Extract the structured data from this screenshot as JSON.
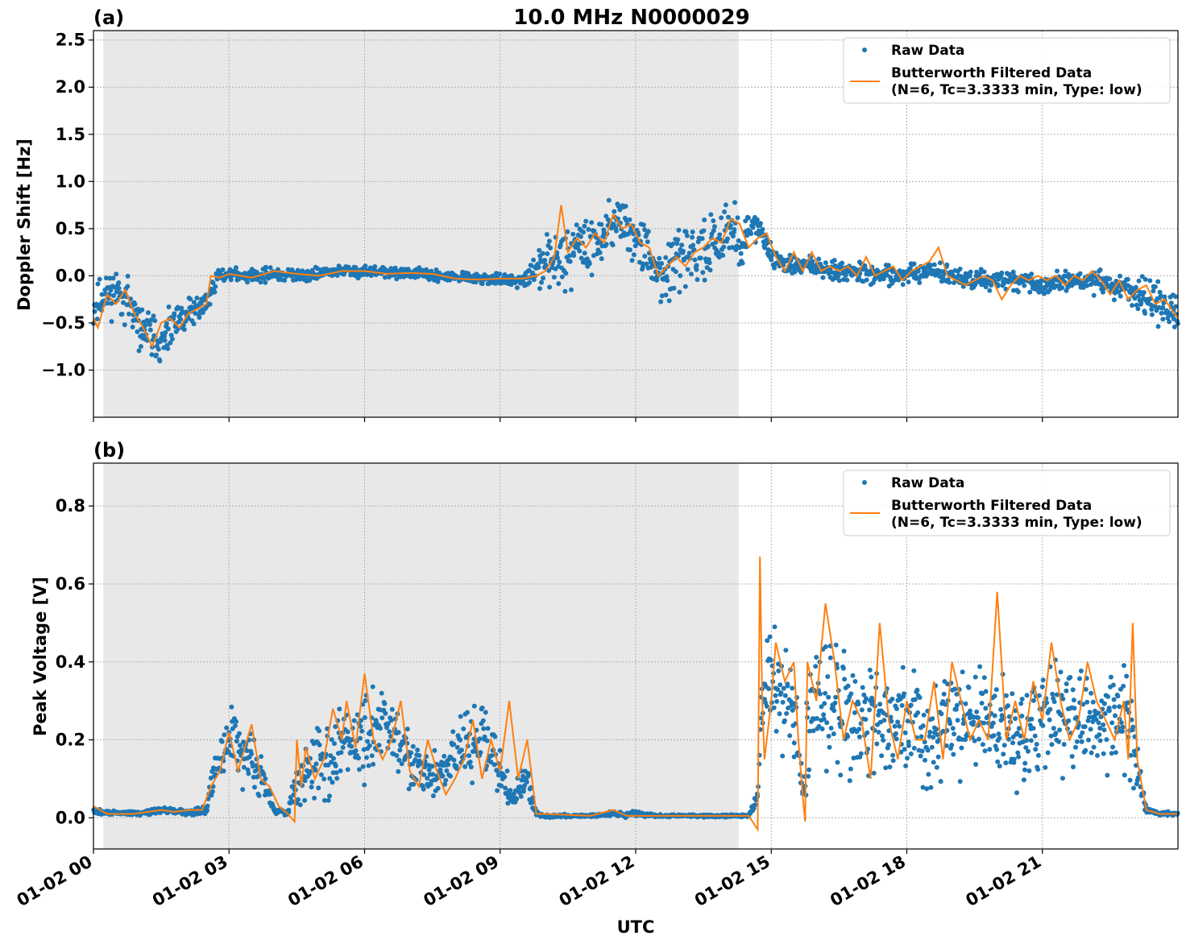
{
  "figure": {
    "title": "10.0 MHz N0000029",
    "xlabel": "UTC",
    "x_tick_labels": [
      "01-02 00",
      "01-02 03",
      "01-02 06",
      "01-02 09",
      "01-02 12",
      "01-02 15",
      "01-02 18",
      "01-02 21"
    ]
  },
  "colors": {
    "raw": "#1f77b4",
    "filtered": "#ff7f0e",
    "night_shade": "#e8e8e8"
  },
  "chart_data": [
    {
      "type": "scatter",
      "panel_label": "(a)",
      "ylabel": "Doppler Shift [Hz]",
      "xlim": [
        0,
        24
      ],
      "ylim": [
        -1.5,
        2.6
      ],
      "y_ticks": [
        -1.0,
        -0.5,
        0.0,
        0.5,
        1.0,
        1.5,
        2.0,
        2.5
      ],
      "y_tick_labels": [
        "−1.0",
        "−0.5",
        "0.0",
        "0.5",
        "1.0",
        "1.5",
        "2.0",
        "2.5"
      ],
      "x_ticks": [
        0,
        3,
        6,
        9,
        12,
        15,
        18,
        21
      ],
      "grid": true,
      "legend_position": "upper right",
      "legend": [
        "Raw Data",
        "Butterworth Filtered Data",
        "(N=6, Tc=3.3333 min, Type: low)"
      ],
      "shaded_interval_hours": [
        0.22,
        14.28
      ],
      "series": [
        {
          "name": "Raw Data",
          "style": "points",
          "x": [
            0,
            0.25,
            0.5,
            0.75,
            1.0,
            1.25,
            1.5,
            1.75,
            2.0,
            2.25,
            2.5,
            2.75,
            3.0,
            3.5,
            4.0,
            4.5,
            5.0,
            5.5,
            6.0,
            6.5,
            7.0,
            7.5,
            8.0,
            8.5,
            9.0,
            9.5,
            9.75,
            10.0,
            10.25,
            10.5,
            10.75,
            11.0,
            11.25,
            11.5,
            11.75,
            12.0,
            12.25,
            12.5,
            12.75,
            13.0,
            13.25,
            13.5,
            13.75,
            14.0,
            14.25,
            14.5,
            14.75,
            15.0,
            15.5,
            16.0,
            16.5,
            17.0,
            17.5,
            18.0,
            18.5,
            19.0,
            19.5,
            20.0,
            20.5,
            21.0,
            21.5,
            22.0,
            22.5,
            23.0,
            23.5,
            24.0
          ],
          "center": [
            -0.35,
            -0.2,
            -0.15,
            -0.25,
            -0.55,
            -0.6,
            -0.75,
            -0.55,
            -0.45,
            -0.35,
            -0.3,
            0.0,
            0.02,
            0.0,
            0.02,
            0.0,
            0.02,
            0.05,
            0.05,
            0.03,
            0.03,
            0.0,
            -0.02,
            -0.03,
            -0.04,
            -0.05,
            0.05,
            0.1,
            0.25,
            0.2,
            0.35,
            0.35,
            0.4,
            0.6,
            0.55,
            0.4,
            0.25,
            0.05,
            0.05,
            0.15,
            0.2,
            0.3,
            0.35,
            0.55,
            0.4,
            0.45,
            0.5,
            0.2,
            0.1,
            0.1,
            0.05,
            0.05,
            0.0,
            0.0,
            0.05,
            0.0,
            -0.05,
            -0.05,
            -0.05,
            -0.1,
            -0.05,
            -0.05,
            -0.1,
            -0.15,
            -0.25,
            -0.45
          ],
          "spread": [
            0.3,
            0.35,
            0.35,
            0.35,
            0.3,
            0.35,
            0.3,
            0.3,
            0.3,
            0.25,
            0.2,
            0.1,
            0.08,
            0.1,
            0.12,
            0.1,
            0.1,
            0.1,
            0.1,
            0.08,
            0.08,
            0.08,
            0.08,
            0.08,
            0.08,
            0.1,
            0.2,
            0.35,
            0.5,
            0.5,
            0.5,
            0.4,
            0.4,
            0.4,
            0.4,
            0.4,
            0.4,
            0.35,
            0.4,
            0.45,
            0.45,
            0.45,
            0.45,
            0.45,
            0.45,
            0.3,
            0.2,
            0.2,
            0.15,
            0.15,
            0.15,
            0.15,
            0.15,
            0.15,
            0.15,
            0.15,
            0.15,
            0.15,
            0.15,
            0.15,
            0.15,
            0.15,
            0.2,
            0.25,
            0.3,
            0.35
          ]
        },
        {
          "name": "Butterworth Filtered Data",
          "style": "line",
          "x": [
            0,
            0.1,
            0.3,
            0.5,
            0.7,
            0.9,
            1.1,
            1.3,
            1.5,
            1.7,
            1.9,
            2.1,
            2.3,
            2.5,
            2.6,
            2.8,
            3.0,
            3.5,
            4.0,
            4.5,
            5.0,
            5.5,
            6.0,
            6.5,
            7.0,
            7.5,
            8.0,
            8.5,
            9.0,
            9.5,
            9.8,
            10.0,
            10.2,
            10.35,
            10.5,
            10.7,
            10.9,
            11.1,
            11.3,
            11.5,
            11.7,
            11.9,
            12.1,
            12.3,
            12.5,
            12.7,
            12.9,
            13.1,
            13.3,
            13.5,
            13.7,
            13.9,
            14.1,
            14.3,
            14.5,
            14.7,
            14.9,
            15.1,
            15.3,
            15.5,
            15.7,
            15.9,
            16.1,
            16.3,
            16.5,
            16.7,
            16.9,
            17.1,
            17.3,
            17.5,
            17.7,
            17.9,
            18.1,
            18.3,
            18.5,
            18.7,
            18.9,
            19.1,
            19.3,
            19.5,
            19.7,
            19.9,
            20.1,
            20.3,
            20.5,
            20.7,
            20.9,
            21.1,
            21.3,
            21.5,
            21.7,
            21.9,
            22.1,
            22.3,
            22.5,
            22.7,
            22.9,
            23.1,
            23.3,
            23.5,
            23.7,
            24.0
          ],
          "y": [
            -0.45,
            -0.55,
            -0.2,
            -0.3,
            -0.15,
            -0.4,
            -0.55,
            -0.75,
            -0.5,
            -0.45,
            -0.55,
            -0.4,
            -0.35,
            -0.3,
            0.0,
            -0.02,
            0.02,
            -0.02,
            0.05,
            0.02,
            0.0,
            0.05,
            0.05,
            0.02,
            0.03,
            0.02,
            -0.03,
            -0.04,
            -0.03,
            -0.03,
            0.0,
            0.05,
            0.2,
            0.75,
            0.25,
            0.4,
            0.3,
            0.45,
            0.35,
            0.65,
            0.5,
            0.55,
            0.35,
            0.3,
            0.0,
            0.1,
            0.2,
            0.1,
            0.25,
            0.3,
            0.4,
            0.35,
            0.6,
            0.55,
            0.3,
            0.4,
            0.45,
            0.2,
            0.05,
            0.25,
            0.05,
            0.25,
            0.05,
            0.1,
            0.05,
            0.1,
            0.0,
            0.2,
            0.0,
            0.05,
            0.1,
            -0.05,
            0.05,
            0.1,
            0.15,
            0.3,
            0.0,
            -0.05,
            -0.1,
            -0.05,
            0.0,
            -0.05,
            -0.25,
            -0.1,
            0.0,
            -0.05,
            0.0,
            -0.05,
            0.0,
            -0.1,
            0.0,
            -0.05,
            0.05,
            -0.05,
            -0.2,
            -0.05,
            -0.25,
            -0.15,
            -0.1,
            -0.3,
            -0.25,
            -0.45
          ]
        }
      ]
    },
    {
      "type": "scatter",
      "panel_label": "(b)",
      "ylabel": "Peak Voltage [V]",
      "xlim": [
        0,
        24
      ],
      "ylim": [
        -0.08,
        0.91
      ],
      "y_ticks": [
        0.0,
        0.2,
        0.4,
        0.6,
        0.8
      ],
      "y_tick_labels": [
        "0.0",
        "0.2",
        "0.4",
        "0.6",
        "0.8"
      ],
      "x_ticks": [
        0,
        3,
        6,
        9,
        12,
        15,
        18,
        21
      ],
      "grid": true,
      "legend_position": "upper right",
      "legend": [
        "Raw Data",
        "Butterworth Filtered Data",
        "(N=6, Tc=3.3333 min, Type: low)"
      ],
      "shaded_interval_hours": [
        0.22,
        14.28
      ],
      "series": [
        {
          "name": "Raw Data",
          "style": "points",
          "x": [
            0,
            0.5,
            1.0,
            1.5,
            2.0,
            2.5,
            2.6,
            2.8,
            3.0,
            3.2,
            3.5,
            3.8,
            4.0,
            4.3,
            4.5,
            4.7,
            5.0,
            5.3,
            5.6,
            6.0,
            6.3,
            6.6,
            7.0,
            7.3,
            7.6,
            8.0,
            8.3,
            8.6,
            9.0,
            9.3,
            9.6,
            9.8,
            10.0,
            11.0,
            11.5,
            12.0,
            12.5,
            13.0,
            14.0,
            14.5,
            14.7,
            14.8,
            15.0,
            15.3,
            15.5,
            15.7,
            15.8,
            16.0,
            16.5,
            17.0,
            17.5,
            18.0,
            18.5,
            19.0,
            19.5,
            20.0,
            20.5,
            21.0,
            21.5,
            22.0,
            22.5,
            22.8,
            23.0,
            23.3,
            23.6,
            24.0
          ],
          "center": [
            0.015,
            0.012,
            0.012,
            0.02,
            0.015,
            0.02,
            0.08,
            0.15,
            0.2,
            0.2,
            0.15,
            0.08,
            0.02,
            0.01,
            0.1,
            0.12,
            0.15,
            0.15,
            0.2,
            0.2,
            0.25,
            0.2,
            0.15,
            0.12,
            0.1,
            0.15,
            0.2,
            0.2,
            0.12,
            0.05,
            0.1,
            0.01,
            0.005,
            0.005,
            0.01,
            0.01,
            0.005,
            0.005,
            0.005,
            0.005,
            0.05,
            0.3,
            0.35,
            0.3,
            0.3,
            0.05,
            0.2,
            0.3,
            0.3,
            0.25,
            0.25,
            0.25,
            0.2,
            0.25,
            0.25,
            0.25,
            0.2,
            0.25,
            0.25,
            0.25,
            0.25,
            0.3,
            0.2,
            0.02,
            0.01,
            0.01
          ],
          "spread": [
            0.01,
            0.008,
            0.008,
            0.01,
            0.01,
            0.015,
            0.06,
            0.1,
            0.12,
            0.12,
            0.1,
            0.06,
            0.01,
            0.01,
            0.1,
            0.12,
            0.14,
            0.14,
            0.15,
            0.15,
            0.15,
            0.15,
            0.12,
            0.1,
            0.08,
            0.12,
            0.13,
            0.13,
            0.1,
            0.04,
            0.08,
            0.01,
            0.005,
            0.005,
            0.01,
            0.01,
            0.005,
            0.005,
            0.005,
            0.005,
            0.03,
            0.2,
            0.22,
            0.22,
            0.22,
            0.04,
            0.2,
            0.22,
            0.22,
            0.2,
            0.2,
            0.2,
            0.18,
            0.2,
            0.2,
            0.2,
            0.18,
            0.2,
            0.2,
            0.2,
            0.2,
            0.2,
            0.15,
            0.01,
            0.008,
            0.008
          ]
        },
        {
          "name": "Butterworth Filtered Data",
          "style": "line",
          "x": [
            0,
            0.3,
            0.6,
            0.9,
            1.2,
            1.5,
            1.8,
            2.1,
            2.4,
            2.6,
            2.8,
            3.0,
            3.2,
            3.4,
            3.5,
            3.7,
            3.9,
            4.1,
            4.3,
            4.45,
            4.5,
            4.6,
            4.7,
            4.9,
            5.1,
            5.3,
            5.5,
            5.6,
            5.8,
            6.0,
            6.2,
            6.4,
            6.6,
            6.8,
            7.0,
            7.2,
            7.4,
            7.6,
            7.8,
            8.0,
            8.2,
            8.4,
            8.6,
            8.8,
            9.0,
            9.2,
            9.4,
            9.6,
            9.8,
            10.0,
            11.0,
            11.5,
            11.8,
            12.0,
            12.5,
            13.0,
            13.5,
            14.0,
            14.5,
            14.7,
            14.75,
            14.8,
            14.85,
            15.0,
            15.1,
            15.3,
            15.5,
            15.6,
            15.7,
            15.75,
            15.8,
            16.0,
            16.2,
            16.4,
            16.6,
            16.8,
            17.0,
            17.2,
            17.4,
            17.6,
            17.8,
            18.0,
            18.2,
            18.4,
            18.6,
            18.8,
            19.0,
            19.2,
            19.4,
            19.6,
            19.8,
            20.0,
            20.2,
            20.4,
            20.6,
            20.8,
            21.0,
            21.2,
            21.4,
            21.6,
            21.8,
            22.0,
            22.2,
            22.4,
            22.6,
            22.8,
            22.9,
            23.0,
            23.1,
            23.3,
            23.6,
            24.0
          ],
          "y": [
            0.03,
            0.01,
            0.01,
            0.01,
            0.015,
            0.02,
            0.015,
            0.02,
            0.02,
            0.08,
            0.12,
            0.22,
            0.12,
            0.2,
            0.24,
            0.1,
            0.08,
            0.03,
            0.01,
            -0.01,
            0.2,
            0.08,
            0.18,
            0.1,
            0.15,
            0.28,
            0.2,
            0.3,
            0.18,
            0.37,
            0.2,
            0.15,
            0.2,
            0.3,
            0.12,
            0.08,
            0.2,
            0.12,
            0.06,
            0.1,
            0.15,
            0.25,
            0.1,
            0.2,
            0.12,
            0.3,
            0.1,
            0.2,
            0.01,
            0.01,
            0.005,
            0.02,
            0.005,
            0.005,
            0.005,
            0.005,
            0.005,
            0.005,
            0.005,
            -0.03,
            0.67,
            0.3,
            0.15,
            0.3,
            0.45,
            0.35,
            0.4,
            0.2,
            0.05,
            -0.01,
            0.4,
            0.3,
            0.55,
            0.4,
            0.2,
            0.3,
            0.25,
            0.1,
            0.5,
            0.25,
            0.15,
            0.3,
            0.2,
            0.2,
            0.35,
            0.15,
            0.4,
            0.3,
            0.2,
            0.25,
            0.2,
            0.58,
            0.2,
            0.3,
            0.2,
            0.35,
            0.25,
            0.45,
            0.3,
            0.2,
            0.25,
            0.4,
            0.3,
            0.25,
            0.2,
            0.3,
            0.15,
            0.5,
            0.15,
            0.02,
            0.01,
            0.01
          ]
        }
      ]
    }
  ]
}
